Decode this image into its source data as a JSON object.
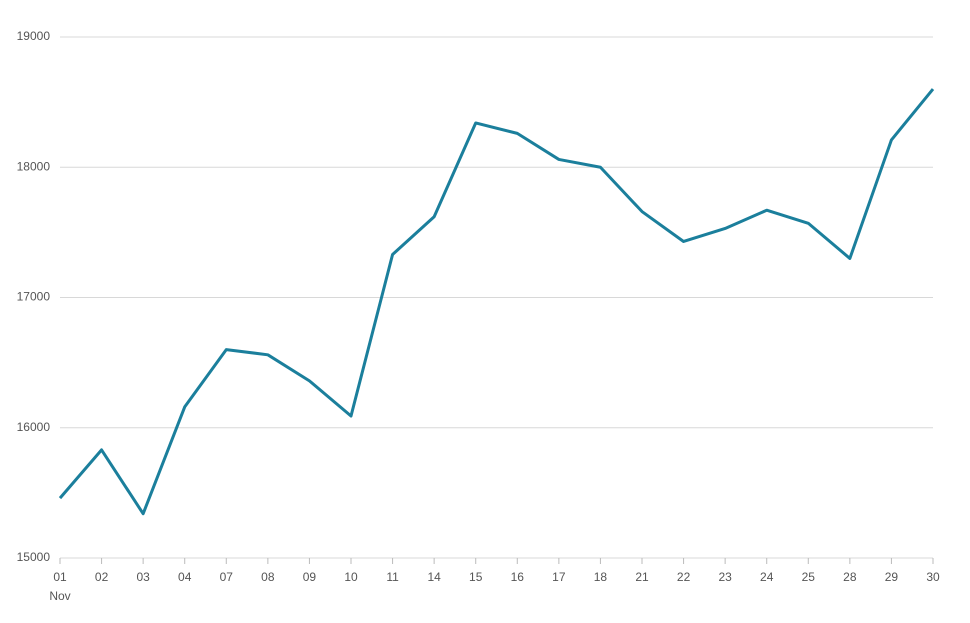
{
  "chart_data": {
    "type": "line",
    "categories": [
      "01",
      "02",
      "03",
      "04",
      "07",
      "08",
      "09",
      "10",
      "11",
      "14",
      "15",
      "16",
      "17",
      "18",
      "21",
      "22",
      "23",
      "24",
      "25",
      "28",
      "29",
      "30"
    ],
    "period_label": "Nov",
    "series": [
      {
        "color": "#1b7f9c",
        "values": [
          15460,
          15830,
          15340,
          16160,
          16600,
          16560,
          16360,
          16090,
          17330,
          17620,
          18340,
          18260,
          18060,
          18000,
          17660,
          17430,
          17530,
          17670,
          17570,
          17300,
          18210,
          18600
        ]
      }
    ],
    "ylim": [
      15000,
      19000
    ],
    "yticks": [
      15000,
      16000,
      17000,
      18000,
      19000
    ],
    "grid": true
  }
}
